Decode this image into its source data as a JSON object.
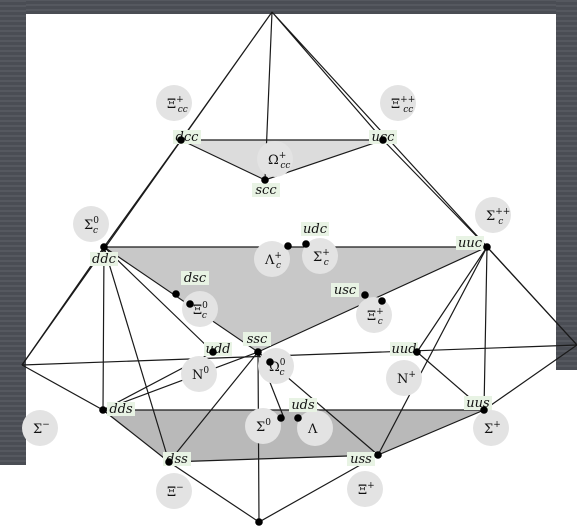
{
  "diagram": {
    "colors": {
      "background_dark": "#4a4d54",
      "stripe": "#55585f",
      "plane_top": "#dcdcdc",
      "plane_mid": "#c8c8c8",
      "plane_bottom": "#b9b9b9",
      "bubble": "#e3e3e3",
      "label_bg": "#e8f3e4",
      "line": "#1a1a1a"
    },
    "quark_labels": {
      "dcc": "dcc",
      "ucc": "ucc",
      "scc": "scc",
      "ddc": "ddc",
      "udc": "udc",
      "uuc": "uuc",
      "dsc": "dsc",
      "usc": "usc",
      "ssc": "ssc",
      "udd": "udd",
      "uud": "uud",
      "dds": "dds",
      "uds": "uds",
      "uus": "uus",
      "dss": "dss",
      "uss": "uss"
    },
    "hadrons": {
      "Xi_cc_plus": {
        "base": "Ξ",
        "sub": "cc",
        "sup": "+"
      },
      "Xi_cc_plusplus": {
        "base": "Ξ",
        "sub": "cc",
        "sup": "++"
      },
      "Omega_cc_plus": {
        "base": "Ω",
        "sub": "cc",
        "sup": "+"
      },
      "Sigma_c_zero": {
        "base": "Σ",
        "sub": "c",
        "sup": "0"
      },
      "Sigma_c_plusplus": {
        "base": "Σ",
        "sub": "c",
        "sup": "++"
      },
      "Lambda_c_plus": {
        "base": "Λ",
        "sub": "c",
        "sup": "+"
      },
      "Sigma_c_plus": {
        "base": "Σ",
        "sub": "c",
        "sup": "+"
      },
      "Xi_c_zero": {
        "base": "Ξ",
        "sub": "c",
        "sup": "0"
      },
      "Xi_c_plus": {
        "base": "Ξ",
        "sub": "c",
        "sup": "+"
      },
      "Omega_c_zero": {
        "base": "Ω",
        "sub": "c",
        "sup": "0"
      },
      "N_zero": {
        "base": "N",
        "sub": "",
        "sup": "0"
      },
      "N_plus": {
        "base": "N",
        "sub": "",
        "sup": "+"
      },
      "Sigma_minus": {
        "base": "Σ",
        "sub": "",
        "sup": "−"
      },
      "Sigma_zero": {
        "base": "Σ",
        "sub": "",
        "sup": "0"
      },
      "Lambda": {
        "base": "Λ",
        "sub": "",
        "sup": ""
      },
      "Sigma_plus": {
        "base": "Σ",
        "sub": "",
        "sup": "+"
      },
      "Xi_minus": {
        "base": "Ξ",
        "sub": "",
        "sup": "−"
      },
      "Xi_plus": {
        "base": "Ξ",
        "sub": "",
        "sup": "+"
      }
    }
  }
}
